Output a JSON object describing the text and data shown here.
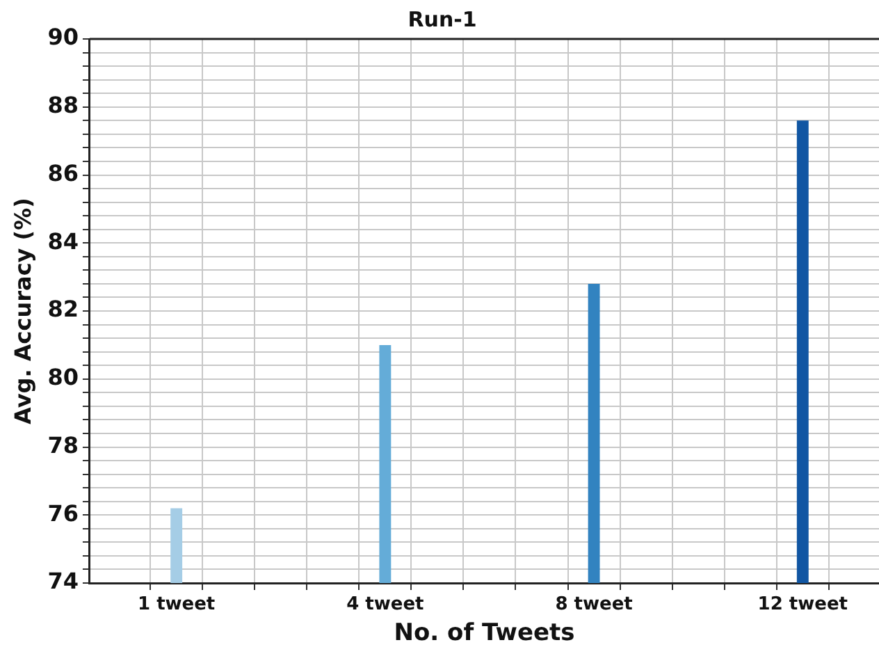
{
  "chart_data": {
    "type": "bar",
    "title": "Run-1",
    "xlabel": "No. of Tweets",
    "ylabel": "Avg. Accuracy (%)",
    "categories": [
      "1 tweet",
      "4 tweet",
      "8 tweet",
      "12 tweet"
    ],
    "values": [
      76.2,
      81.0,
      82.8,
      87.6
    ],
    "colors": [
      "#a5cde6",
      "#64acd8",
      "#3283c0",
      "#1156a3"
    ],
    "ylim": [
      74,
      90
    ],
    "yticks": [
      74,
      {
        "value": 74.4,
        "label": null
      },
      {
        "value": 74.8,
        "label": null
      },
      {
        "value": 75.2,
        "label": null
      },
      {
        "value": 75.6,
        "label": null
      },
      76,
      {
        "value": 76.4,
        "label": null
      },
      {
        "value": 76.8,
        "label": null
      },
      {
        "value": 77.2,
        "label": null
      },
      {
        "value": 77.6,
        "label": null
      },
      78,
      {
        "value": 78.4,
        "label": null
      },
      {
        "value": 78.8,
        "label": null
      },
      {
        "value": 79.2,
        "label": null
      },
      {
        "value": 79.6,
        "label": null
      },
      80,
      {
        "value": 80.4,
        "label": null
      },
      {
        "value": 80.8,
        "label": null
      },
      {
        "value": 81.2,
        "label": null
      },
      {
        "value": 81.6,
        "label": null
      },
      82,
      {
        "value": 82.4,
        "label": null
      },
      {
        "value": 82.8,
        "label": null
      },
      {
        "value": 83.2,
        "label": null
      },
      {
        "value": 83.6,
        "label": null
      },
      84,
      {
        "value": 84.4,
        "label": null
      },
      {
        "value": 84.8,
        "label": null
      },
      {
        "value": 85.2,
        "label": null
      },
      {
        "value": 85.6,
        "label": null
      },
      86,
      {
        "value": 86.4,
        "label": null
      },
      {
        "value": 86.8,
        "label": null
      },
      {
        "value": 87.2,
        "label": null
      },
      {
        "value": 87.6,
        "label": null
      },
      88,
      {
        "value": 88.4,
        "label": null
      },
      {
        "value": 88.8,
        "label": null
      },
      {
        "value": 89.2,
        "label": null
      },
      {
        "value": 89.6,
        "label": null
      },
      90
    ],
    "grid": true
  }
}
